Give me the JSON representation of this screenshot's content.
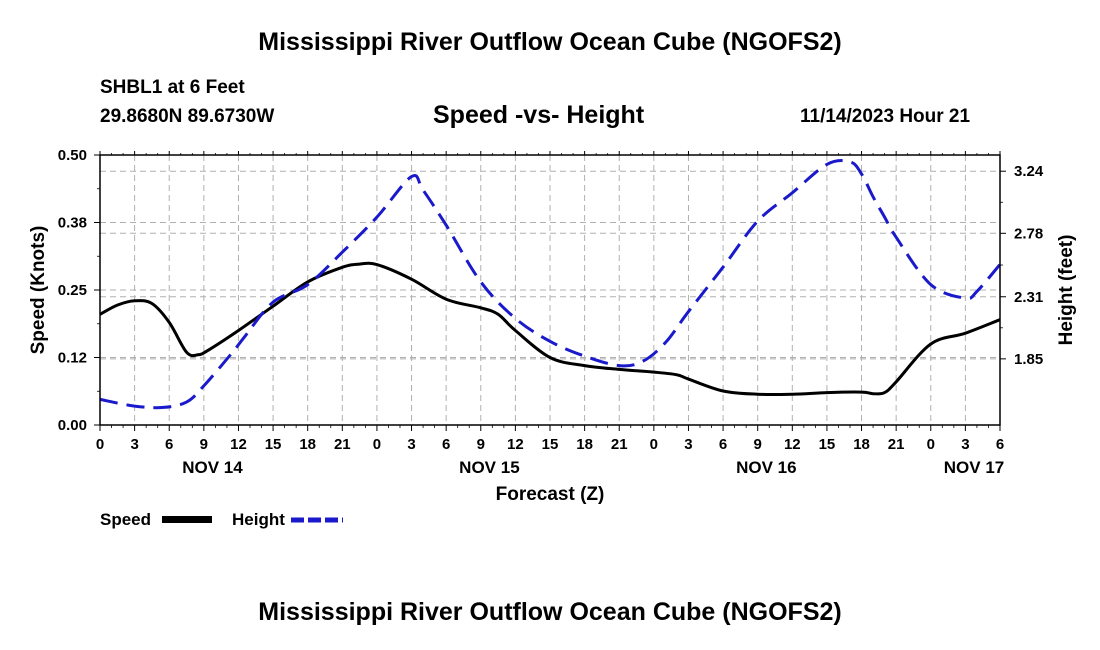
{
  "header": {
    "title": "Mississippi River Outflow Ocean Cube (NGOFS2)",
    "station": "SHBL1 at 6 Feet",
    "coords": "29.8680N  89.6730W",
    "subtitle": "Speed -vs- Height",
    "date": "11/14/2023 Hour 21"
  },
  "footer": {
    "title": "Mississippi River Outflow Ocean Cube (NGOFS2)"
  },
  "legend": {
    "speed_label": "Speed",
    "height_label": "Height"
  },
  "colors": {
    "speed": "#000000",
    "height": "#1a1acc",
    "grid": "#b0b0b0"
  },
  "chart_data": {
    "type": "line",
    "title": "Speed -vs- Height",
    "xlabel": "Forecast (Z)",
    "ylabel": "Speed (Knots)",
    "y2label": "Height (feet)",
    "xlim": [
      0,
      78
    ],
    "ylim": [
      0.0,
      0.5
    ],
    "y2lim": [
      1.36,
      3.36
    ],
    "x_ticks": [
      0,
      3,
      6,
      9,
      12,
      15,
      18,
      21,
      24,
      27,
      30,
      33,
      36,
      39,
      42,
      45,
      48,
      51,
      54,
      57,
      60,
      63,
      66,
      69,
      72,
      75,
      78
    ],
    "x_tick_labels": [
      "0",
      "3",
      "6",
      "9",
      "12",
      "15",
      "18",
      "21",
      "0",
      "3",
      "6",
      "9",
      "12",
      "15",
      "18",
      "21",
      "0",
      "3",
      "6",
      "9",
      "12",
      "15",
      "18",
      "21",
      "0",
      "3",
      "6"
    ],
    "day_labels": [
      {
        "x": 9.75,
        "label": "NOV 14"
      },
      {
        "x": 33.75,
        "label": "NOV 15"
      },
      {
        "x": 57.75,
        "label": "NOV 16"
      },
      {
        "x": 75.75,
        "label": "NOV 17"
      }
    ],
    "y_ticks": [
      0.0,
      0.125,
      0.25,
      0.375,
      0.5
    ],
    "y_tick_labels": [
      "0.00",
      "0.12",
      "0.25",
      "0.38",
      "0.50"
    ],
    "y2_ticks": [
      1.85,
      2.31,
      2.78,
      3.24
    ],
    "y2_tick_labels": [
      "1.85",
      "2.31",
      "2.78",
      "3.24"
    ],
    "series": [
      {
        "name": "Speed",
        "axis": "left",
        "style": "solid",
        "x": [
          0,
          1.5,
          3,
          4.5,
          6,
          7.5,
          8.5,
          9.5,
          12,
          15,
          18,
          21,
          22.5,
          24,
          27,
          30,
          33,
          34.5,
          36,
          39,
          42,
          45,
          48,
          50,
          51,
          54,
          57,
          60,
          63,
          66,
          67,
          68,
          69,
          72,
          75,
          78
        ],
        "y": [
          0.205,
          0.222,
          0.23,
          0.225,
          0.19,
          0.135,
          0.13,
          0.14,
          0.175,
          0.22,
          0.265,
          0.292,
          0.298,
          0.297,
          0.27,
          0.233,
          0.217,
          0.205,
          0.175,
          0.125,
          0.11,
          0.103,
          0.098,
          0.093,
          0.085,
          0.063,
          0.057,
          0.057,
          0.06,
          0.061,
          0.058,
          0.06,
          0.08,
          0.15,
          0.17,
          0.195
        ]
      },
      {
        "name": "Height",
        "axis": "right",
        "style": "dashed",
        "x": [
          0,
          3,
          5.5,
          7.5,
          9,
          11.5,
          12.5,
          15,
          18,
          21,
          24,
          27,
          28,
          30,
          33,
          36,
          39,
          42,
          45,
          47,
          49,
          51,
          54,
          57,
          60,
          63,
          65,
          66,
          67,
          68,
          69,
          72,
          75,
          76,
          78
        ],
        "y": [
          1.55,
          1.5,
          1.49,
          1.53,
          1.65,
          1.9,
          2.01,
          2.27,
          2.4,
          2.64,
          2.9,
          3.2,
          3.1,
          2.84,
          2.42,
          2.15,
          1.98,
          1.87,
          1.8,
          1.83,
          1.97,
          2.2,
          2.53,
          2.87,
          3.08,
          3.29,
          3.31,
          3.22,
          3.05,
          2.9,
          2.75,
          2.4,
          2.3,
          2.35,
          2.55
        ]
      }
    ]
  }
}
